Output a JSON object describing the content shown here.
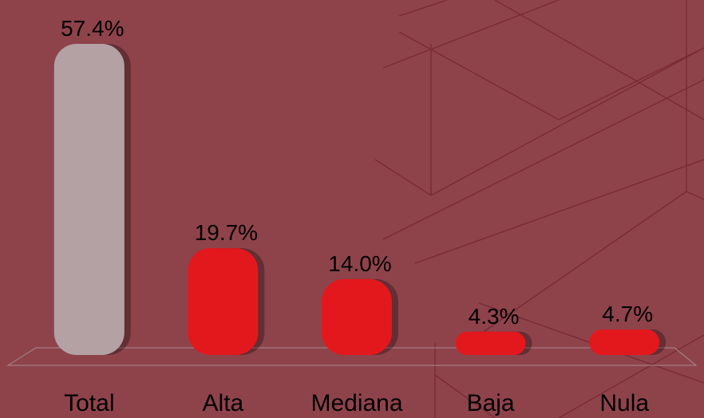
{
  "chart_data": {
    "type": "bar",
    "categories": [
      "Total",
      "Alta",
      "Mediana",
      "Baja",
      "Nula"
    ],
    "values": [
      57.4,
      19.7,
      14.0,
      4.3,
      4.7
    ],
    "value_labels": [
      "57.4%",
      "19.7%",
      "14.0%",
      "4.3%",
      "4.7%"
    ],
    "colors": [
      "#b3a1a4",
      "#e3181d",
      "#e3181d",
      "#e3181d",
      "#e3181d"
    ]
  }
}
